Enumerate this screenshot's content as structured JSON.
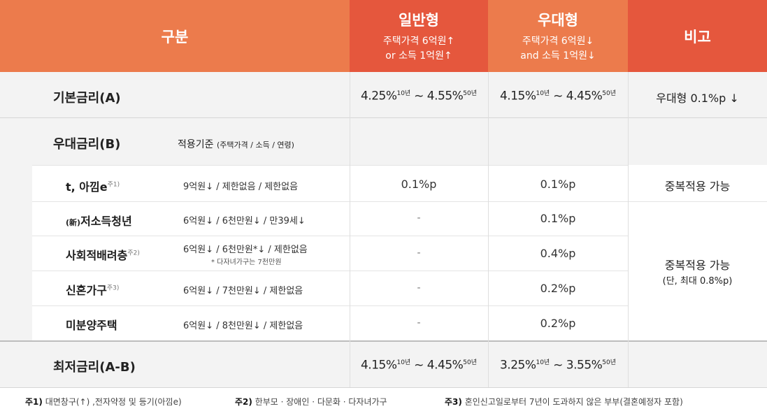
{
  "header": {
    "gubun": "구분",
    "normal": {
      "title": "일반형",
      "line1": "주택가격 6억원↑",
      "line2": "or 소득 1억원↑"
    },
    "preferential": {
      "title": "우대형",
      "line1": "주택가격 6억원↓",
      "line2": "and 소득 1억원↓"
    },
    "note": "비고"
  },
  "base_rate": {
    "label": "기본금리(A)",
    "normal": {
      "a": "4.25%",
      "a_sup": "10년",
      "sep": "~",
      "b": "4.55%",
      "b_sup": "50년"
    },
    "preferential": {
      "a": "4.15%",
      "a_sup": "10년",
      "sep": "~",
      "b": "4.45%",
      "b_sup": "50년"
    },
    "note": "우대형 0.1%p ↓"
  },
  "pref_rate": {
    "label": "우대금리(B)",
    "criteria_label": "적용기준",
    "criteria_sub": "(주택가격 / 소득 / 연령)",
    "rows": [
      {
        "name": "t, 아낌e",
        "sup": "주1)",
        "criteria": "9억원↓ / 제한없음 / 제한없음",
        "normal": "0.1%p",
        "preferential": "0.1%p"
      },
      {
        "name_prefix": "(新)",
        "name": "저소득청년",
        "criteria": "6억원↓ / 6천만원↓ / 만39세↓",
        "normal": "-",
        "preferential": "0.1%p"
      },
      {
        "name": "사회적배려층",
        "sup": "주2)",
        "criteria": "6억원↓ / 6천만원*↓ / 제한없음",
        "criteria_note": "* 다자녀가구는 7천만원",
        "normal": "-",
        "preferential": "0.4%p"
      },
      {
        "name": "신혼가구",
        "sup": "주3)",
        "criteria": "6억원↓ / 7천만원↓ / 제한없음",
        "normal": "-",
        "preferential": "0.2%p"
      },
      {
        "name": "미분양주택",
        "criteria": "6억원↓ / 8천만원↓ / 제한없음",
        "normal": "-",
        "preferential": "0.2%p"
      }
    ],
    "note_first": "중복적용 가능",
    "note_rest": "중복적용 가능",
    "note_rest_sub": "(단, 최대 0.8%p)"
  },
  "min_rate": {
    "label": "최저금리(A-B)",
    "normal": {
      "a": "4.15%",
      "a_sup": "10년",
      "sep": "~",
      "b": "4.45%",
      "b_sup": "50년"
    },
    "preferential": {
      "a": "3.25%",
      "a_sup": "10년",
      "sep": "~",
      "b": "3.55%",
      "b_sup": "50년"
    }
  },
  "footnotes": [
    {
      "mark": "주1)",
      "text": "대면창구(↑) ,전자약정 및 등기(아낌e)"
    },
    {
      "mark": "주2)",
      "text": "한부모 · 장애인 · 다문화 · 다자녀가구"
    },
    {
      "mark": "주3)",
      "text": "혼인신고일로부터 7년이 도과하지 않은 부부(결혼예정자 포함)"
    }
  ]
}
